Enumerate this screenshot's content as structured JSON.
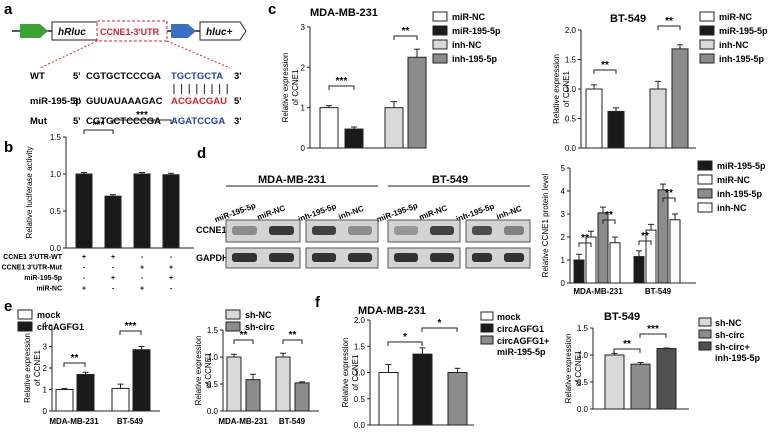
{
  "panels": {
    "a": "a",
    "b": "b",
    "c": "c",
    "d": "d",
    "e": "e",
    "f": "f"
  },
  "construct": {
    "hrluc": "hRluc",
    "utr": "CCNE1-3'UTR",
    "hluc": "hluc+"
  },
  "sequences": {
    "wt": {
      "label": "WT",
      "p5": "5'",
      "seq1": "CGTGCTCCCGA",
      "seq2": "TGCTGCTA",
      "p3": "3'"
    },
    "mir": {
      "label": "miR-195-5p",
      "p3": "3'",
      "seq1": "GUUAUAAAGAC",
      "seq2": "ACGACGAU",
      "p5": "5'"
    },
    "mut": {
      "label": "Mut",
      "p5": "5'",
      "seq1": "CGTGCTCCCGA",
      "seq2": "AGATCCGA",
      "p3": "3'"
    }
  },
  "colors": {
    "black": "#1a1a1a",
    "white": "#ffffff",
    "lightgray": "#d9d9d9",
    "gray": "#8c8c8c",
    "red": "#d6202a",
    "blue": "#1f3fb0",
    "green": "#3aa335",
    "arrowblue": "#3a6fc4"
  },
  "blots": {
    "mda_title": "MDA-MB-231",
    "bt_title": "BT-549",
    "lanes": [
      "miR-195-5p",
      "miR-NC",
      "inh-195-5p",
      "inh-NC",
      "miR-195-5p",
      "miR-NC",
      "inh-195-5p",
      "inh-NC"
    ],
    "rows": [
      "CCNE1",
      "GAPDH"
    ]
  },
  "chart_data": [
    {
      "id": "b",
      "type": "bar",
      "ylabel": "Relative luciferase activity",
      "ylim": [
        0,
        1.5
      ],
      "yticks": [
        "0.0",
        "0.5",
        "1.0",
        "1.5"
      ],
      "values": [
        1.0,
        0.7,
        1.0,
        0.99
      ],
      "colors": [
        "#1a1a1a",
        "#1a1a1a",
        "#1a1a1a",
        "#1a1a1a"
      ],
      "significance": [
        "***",
        "***"
      ],
      "table": {
        "rows": [
          "CCNE1 3'UTR-WT",
          "CCNE1 3'UTR-Mut",
          "miR-195-5p",
          "miR-NC"
        ],
        "cells": [
          [
            "+",
            "+",
            "-",
            "-"
          ],
          [
            "-",
            "-",
            "+",
            "+"
          ],
          [
            "-",
            "+",
            "-",
            "+"
          ],
          [
            "+",
            "-",
            "+",
            "-"
          ]
        ]
      }
    },
    {
      "id": "c1",
      "type": "bar",
      "title": "MDA-MB-231",
      "ylabel": "Relative expression of CCNE1",
      "ylim": [
        0,
        3
      ],
      "yticks": [
        "0",
        "1",
        "2",
        "3"
      ],
      "values": [
        1.0,
        0.47,
        1.0,
        2.25
      ],
      "colors": [
        "#ffffff",
        "#1a1a1a",
        "#d9d9d9",
        "#8c8c8c"
      ],
      "significance": [
        "***",
        "**"
      ]
    },
    {
      "id": "c2",
      "type": "bar",
      "title": "BT-549",
      "ylabel": "Relative expression of CCNE1",
      "ylim": [
        0,
        2.0
      ],
      "yticks": [
        "0.0",
        "0.5",
        "1.0",
        "1.5",
        "2.0"
      ],
      "values": [
        1.0,
        0.62,
        1.0,
        1.68
      ],
      "colors": [
        "#ffffff",
        "#1a1a1a",
        "#d9d9d9",
        "#8c8c8c"
      ],
      "significance": [
        "**",
        "**"
      ]
    },
    {
      "id": "c_legend",
      "type": "legend",
      "series": [
        {
          "name": "miR-NC",
          "color": "#ffffff"
        },
        {
          "name": "miR-195-5p",
          "color": "#1a1a1a"
        },
        {
          "name": "inh-NC",
          "color": "#d9d9d9"
        },
        {
          "name": "inh-195-5p",
          "color": "#8c8c8c"
        }
      ]
    },
    {
      "id": "d",
      "type": "bar",
      "ylabel": "Relative CCNE1 protein level",
      "ylim": [
        0,
        5
      ],
      "yticks": [
        "0",
        "1",
        "2",
        "3",
        "4",
        "5"
      ],
      "categories": [
        "MDA-MB-231",
        "BT-549"
      ],
      "series": [
        {
          "name": "miR-195-5p",
          "color": "#1a1a1a",
          "values": [
            1.0,
            1.15
          ]
        },
        {
          "name": "miR-NC",
          "color": "#ffffff",
          "values": [
            2.0,
            2.3
          ]
        },
        {
          "name": "inh-195-5p",
          "color": "#8c8c8c",
          "values": [
            3.05,
            4.05
          ]
        },
        {
          "name": "inh-NC",
          "color": "#ffffff",
          "values": [
            1.75,
            2.75
          ]
        }
      ],
      "significance": [
        "**",
        "**",
        "**",
        "**"
      ]
    },
    {
      "id": "e1",
      "type": "bar",
      "ylabel": "Relative expression of CCNE1",
      "ylim": [
        0,
        4
      ],
      "yticks": [
        "0",
        "1",
        "2",
        "3",
        "4"
      ],
      "categories": [
        "MDA-MB-231",
        "BT-549"
      ],
      "series": [
        {
          "name": "mock",
          "color": "#ffffff",
          "values": [
            1.0,
            1.05
          ]
        },
        {
          "name": "circAGFG1",
          "color": "#1a1a1a",
          "values": [
            1.7,
            2.85
          ]
        }
      ],
      "significance": [
        "**",
        "***"
      ]
    },
    {
      "id": "e2",
      "type": "bar",
      "ylabel": "Relative expression of CCNE1",
      "ylim": [
        0,
        1.5
      ],
      "yticks": [
        "0.0",
        "0.5",
        "1.0",
        "1.5"
      ],
      "categories": [
        "MDA-MB-231",
        "BT-549"
      ],
      "series": [
        {
          "name": "sh-NC",
          "color": "#d9d9d9",
          "values": [
            1.0,
            1.0
          ]
        },
        {
          "name": "sh-circ",
          "color": "#8c8c8c",
          "values": [
            0.58,
            0.52
          ]
        }
      ],
      "significance": [
        "**",
        "**"
      ]
    },
    {
      "id": "f1",
      "type": "bar",
      "title": "MDA-MB-231",
      "ylabel": "Relative expression of CCNE1",
      "ylim": [
        0,
        2.0
      ],
      "yticks": [
        "0.0",
        "0.5",
        "1.0",
        "1.5",
        "2.0"
      ],
      "values": [
        1.0,
        1.35,
        1.0
      ],
      "colors": [
        "#ffffff",
        "#1a1a1a",
        "#8c8c8c"
      ],
      "significance": [
        "*",
        "*"
      ],
      "legend": [
        "mock",
        "circAGFG1",
        "circAGFG1+ miR-195-5p"
      ]
    },
    {
      "id": "f2",
      "type": "bar",
      "title": "BT-549",
      "ylabel": "Relative expression of CCNE1",
      "ylim": [
        0,
        1.5
      ],
      "yticks": [
        "0.0",
        "0.5",
        "1.0",
        "1.5"
      ],
      "values": [
        1.0,
        0.83,
        1.12
      ],
      "colors": [
        "#d9d9d9",
        "#8c8c8c",
        "#505050"
      ],
      "significance": [
        "**",
        "***"
      ],
      "legend": [
        "sh-NC",
        "sh-circ",
        "sh-circ+ inh-195-5p"
      ]
    }
  ]
}
